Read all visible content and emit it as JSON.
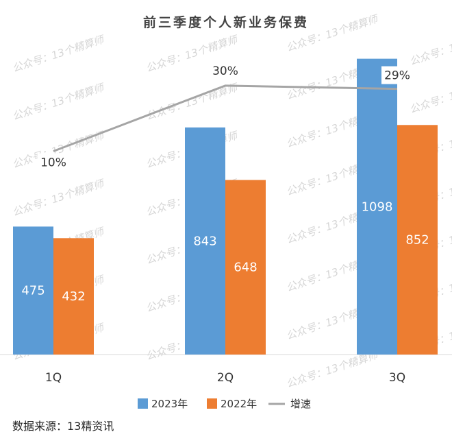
{
  "chart_data": {
    "type": "bar",
    "title": "前三季度个人新业务保费",
    "categories": [
      "1Q",
      "2Q",
      "3Q"
    ],
    "series": [
      {
        "name": "2023年",
        "type": "bar",
        "values": [
          475,
          843,
          1098
        ],
        "color": "#5b9bd5"
      },
      {
        "name": "2022年",
        "type": "bar",
        "values": [
          432,
          648,
          852
        ],
        "color": "#ed7d31"
      }
    ],
    "line_series": {
      "name": "增速",
      "values": [
        10,
        30,
        29
      ],
      "labels": [
        "10%",
        "30%",
        "29%"
      ],
      "color": "#a5a5a5"
    },
    "ylim": [
      0,
      1120
    ],
    "rate_ylim": [
      -52,
      40
    ],
    "grid": false,
    "legend_position": "bottom"
  },
  "source": "数据来源：13精资讯",
  "watermark": "公众号：13个精算师"
}
